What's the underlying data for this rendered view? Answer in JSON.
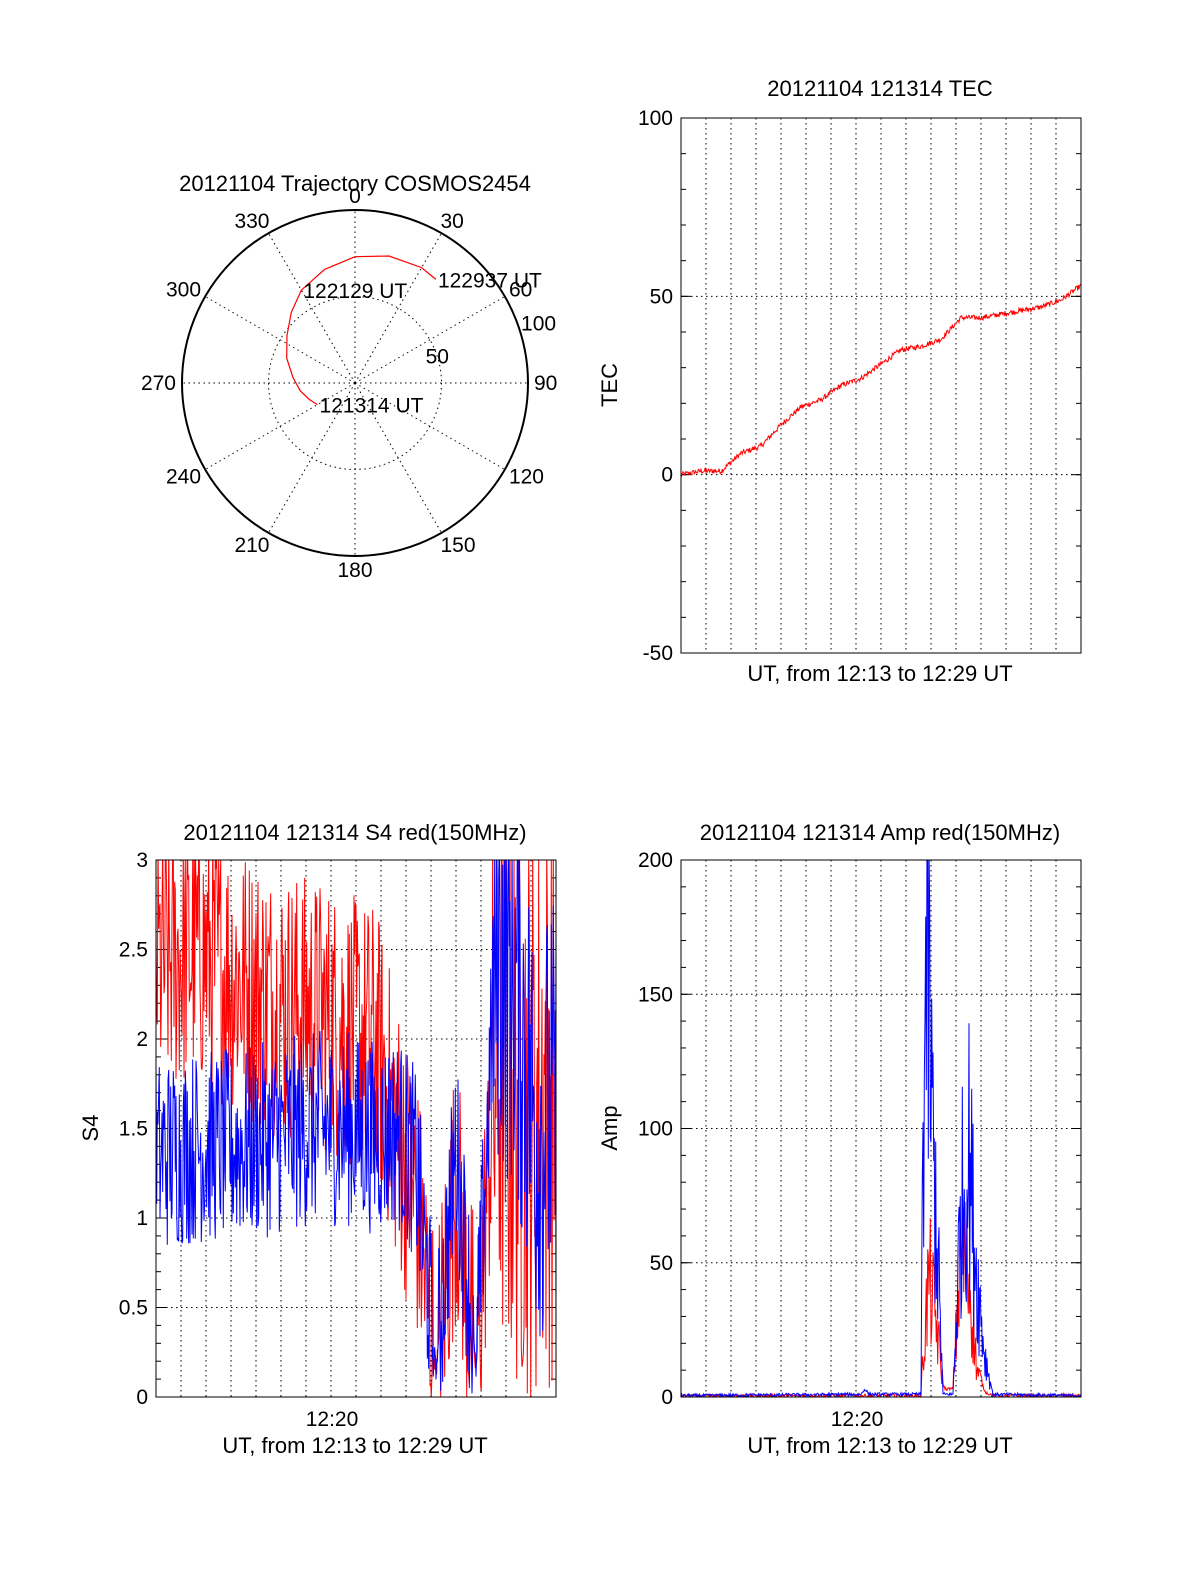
{
  "chart_data": [
    {
      "type": "polar",
      "title": "20121104 Trajectory COSMOS2454",
      "angle_labels": [
        "0",
        "30",
        "60",
        "90",
        "120",
        "150",
        "180",
        "210",
        "240",
        "270",
        "300",
        "330"
      ],
      "radius_labels": [
        "50",
        "100"
      ],
      "radius_range": [
        0,
        100
      ],
      "grid": true,
      "series": [
        {
          "color": "#ff0000",
          "points": [
            {
              "az": 240,
              "el": 25
            },
            {
              "az": 250,
              "el": 28
            },
            {
              "az": 262,
              "el": 32
            },
            {
              "az": 275,
              "el": 36
            },
            {
              "az": 290,
              "el": 42
            },
            {
              "az": 305,
              "el": 48
            },
            {
              "az": 318,
              "el": 55
            },
            {
              "az": 330,
              "el": 62
            },
            {
              "az": 345,
              "el": 68
            },
            {
              "az": 360,
              "el": 73
            },
            {
              "az": 375,
              "el": 76
            },
            {
              "az": 390,
              "el": 77
            },
            {
              "az": 398,
              "el": 76
            }
          ]
        }
      ],
      "annotations": [
        {
          "text": "121314 UT",
          "az": 240,
          "el": 25
        },
        {
          "text": "122129 UT",
          "az": 330,
          "el": 62
        },
        {
          "text": "122937 UT",
          "az": 398,
          "el": 76
        }
      ]
    },
    {
      "type": "line",
      "title": "20121104 121314 TEC",
      "xlabel": "UT, from 12:13 to 12:29 UT",
      "ylabel": "TEC",
      "ylim": [
        -50,
        100
      ],
      "yticks": [
        "-50",
        "0",
        "50",
        "100"
      ],
      "xticks": [],
      "grid": true,
      "series": [
        {
          "color": "#ff0000",
          "x": [
            0,
            0.05,
            0.1,
            0.15,
            0.2,
            0.25,
            0.3,
            0.35,
            0.4,
            0.45,
            0.5,
            0.55,
            0.6,
            0.65,
            0.7,
            0.75,
            0.8,
            0.85,
            0.9,
            0.95,
            1
          ],
          "values": [
            0,
            1,
            1,
            6,
            8,
            14,
            19,
            21,
            25,
            27,
            31,
            35,
            36,
            38,
            44,
            44,
            45,
            46,
            47,
            49,
            53
          ]
        }
      ]
    },
    {
      "type": "line",
      "title": "20121104 121314 S4 red(150MHz)",
      "xlabel": "UT, from 12:13 to 12:29 UT",
      "ylabel": "S4",
      "ylim": [
        0,
        3
      ],
      "yticks": [
        "0",
        "0.5",
        "1",
        "1.5",
        "2",
        "2.5",
        "3"
      ],
      "xticks": [
        "12:20"
      ],
      "grid": true,
      "series": [
        {
          "color": "#ff0000",
          "x": [
            0,
            0.1,
            0.2,
            0.3,
            0.4,
            0.48,
            0.55,
            0.6,
            0.65,
            0.7,
            0.75,
            0.8,
            0.85,
            0.9,
            0.95,
            1
          ],
          "values": [
            2.4,
            2.5,
            2.35,
            2.2,
            2.15,
            2.05,
            2.0,
            1.5,
            1.1,
            0.15,
            1.2,
            0.15,
            1.9,
            1.7,
            1.6,
            1.8
          ]
        },
        {
          "color": "#0000ff",
          "x": [
            0,
            0.1,
            0.2,
            0.3,
            0.4,
            0.48,
            0.55,
            0.6,
            0.65,
            0.7,
            0.75,
            0.8,
            0.85,
            0.9,
            0.95,
            1
          ],
          "values": [
            1.35,
            1.4,
            1.4,
            1.45,
            1.5,
            1.5,
            1.45,
            1.5,
            1.3,
            0.15,
            1.4,
            0.15,
            2.5,
            2.3,
            1.5,
            1.6
          ]
        }
      ]
    },
    {
      "type": "line",
      "title": "20121104 121314 Amp red(150MHz)",
      "xlabel": "UT, from 12:13 to 12:29 UT",
      "ylabel": "Amp",
      "ylim": [
        0,
        200
      ],
      "yticks": [
        "0",
        "50",
        "100",
        "150",
        "200"
      ],
      "xticks": [
        "12:20"
      ],
      "grid": true,
      "series": [
        {
          "color": "#ff0000",
          "x": [
            0,
            0.6,
            0.605,
            0.62,
            0.64,
            0.655,
            0.66,
            0.68,
            0.7,
            0.72,
            0.74,
            0.76,
            0.78,
            1
          ],
          "values": [
            0.5,
            0.5,
            15,
            45,
            25,
            5,
            3,
            3,
            55,
            45,
            10,
            2,
            0.5,
            0.5
          ]
        },
        {
          "color": "#0000ff",
          "x": [
            0,
            0.45,
            0.46,
            0.47,
            0.6,
            0.605,
            0.615,
            0.625,
            0.64,
            0.655,
            0.66,
            0.68,
            0.7,
            0.72,
            0.74,
            0.76,
            0.78,
            1
          ],
          "values": [
            0.5,
            1,
            3,
            1,
            1,
            100,
            175,
            110,
            60,
            1,
            1,
            1,
            70,
            90,
            45,
            15,
            1,
            0.5
          ]
        }
      ]
    }
  ]
}
